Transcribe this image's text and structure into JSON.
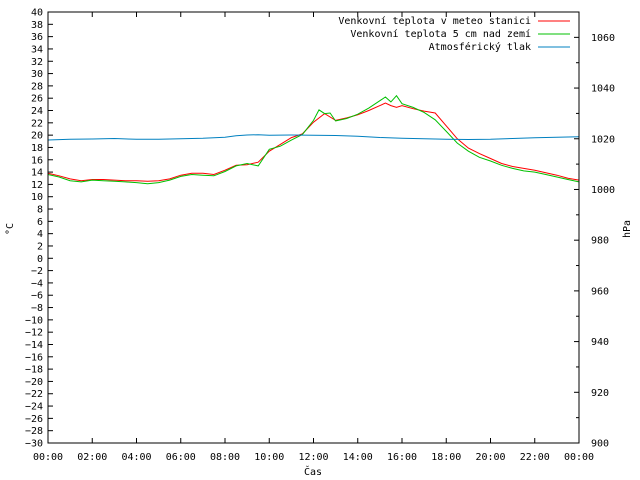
{
  "chart_data": {
    "type": "line",
    "xlabel": "Čas",
    "ylabel_left": "°C",
    "ylabel_right": "hPa",
    "x_ticks": [
      "00:00",
      "02:00",
      "04:00",
      "06:00",
      "08:00",
      "10:00",
      "12:00",
      "14:00",
      "16:00",
      "18:00",
      "20:00",
      "22:00",
      "00:00"
    ],
    "xlim": [
      0,
      24
    ],
    "ylim_left": [
      -30,
      40
    ],
    "y_ticks_left": [
      -30,
      -28,
      -26,
      -24,
      -22,
      -20,
      -18,
      -16,
      -14,
      -12,
      -10,
      -8,
      -6,
      -4,
      -2,
      0,
      2,
      4,
      6,
      8,
      10,
      12,
      14,
      16,
      18,
      20,
      22,
      24,
      26,
      28,
      30,
      32,
      34,
      36,
      38,
      40
    ],
    "ylim_right": [
      900,
      1070
    ],
    "y_ticks_right": [
      900,
      920,
      940,
      960,
      980,
      1000,
      1020,
      1040,
      1060
    ],
    "legend_position": "top-right",
    "series": [
      {
        "name": "Venkovní teplota v meteo stanici",
        "axis": "left",
        "color": "#ff0000",
        "x": [
          0,
          0.5,
          1,
          1.5,
          2,
          2.5,
          3,
          3.5,
          4,
          4.5,
          5,
          5.5,
          6,
          6.5,
          7,
          7.5,
          8,
          8.5,
          9,
          9.5,
          10,
          10.5,
          11,
          11.5,
          12,
          12.5,
          13,
          13.5,
          14,
          14.5,
          15,
          15.25,
          15.5,
          15.75,
          16,
          16.5,
          17,
          17.5,
          18,
          18.5,
          19,
          19.5,
          20,
          20.5,
          21,
          21.5,
          22,
          22.5,
          23,
          23.5,
          24
        ],
        "values": [
          13.8,
          13.4,
          12.9,
          12.6,
          12.8,
          12.8,
          12.7,
          12.6,
          12.6,
          12.5,
          12.6,
          12.9,
          13.5,
          13.8,
          13.8,
          13.6,
          14.3,
          15.1,
          15.2,
          15.6,
          17.4,
          18.5,
          19.6,
          20.2,
          22.1,
          23.5,
          22.4,
          22.8,
          23.3,
          24.0,
          24.8,
          25.2,
          24.8,
          24.5,
          24.8,
          24.3,
          23.9,
          23.6,
          21.5,
          19.4,
          17.9,
          17.0,
          16.2,
          15.4,
          14.9,
          14.6,
          14.3,
          13.9,
          13.5,
          13.0,
          12.7
        ]
      },
      {
        "name": "Venkovní teplota 5 cm nad zemí",
        "axis": "left",
        "color": "#00c000",
        "x": [
          0,
          0.5,
          1,
          1.5,
          2,
          2.5,
          3,
          3.5,
          4,
          4.5,
          5,
          5.5,
          6,
          6.5,
          7,
          7.5,
          8,
          8.5,
          9,
          9.5,
          10,
          10.5,
          11,
          11.5,
          12,
          12.25,
          12.5,
          12.75,
          13,
          13.5,
          14,
          14.5,
          15,
          15.25,
          15.5,
          15.75,
          16,
          16.5,
          17,
          17.5,
          18,
          18.5,
          19,
          19.5,
          20,
          20.5,
          21,
          21.5,
          22,
          22.5,
          23,
          23.5,
          24
        ],
        "values": [
          13.6,
          13.2,
          12.6,
          12.4,
          12.7,
          12.6,
          12.5,
          12.4,
          12.3,
          12.1,
          12.3,
          12.7,
          13.3,
          13.6,
          13.5,
          13.4,
          14.1,
          15.0,
          15.4,
          15.0,
          17.7,
          18.2,
          19.2,
          20.1,
          22.4,
          24.1,
          23.5,
          23.6,
          22.3,
          22.7,
          23.4,
          24.4,
          25.6,
          26.2,
          25.4,
          26.4,
          25.1,
          24.5,
          23.7,
          22.5,
          20.6,
          18.7,
          17.4,
          16.4,
          15.8,
          15.1,
          14.6,
          14.2,
          14.0,
          13.6,
          13.2,
          12.8,
          12.4
        ]
      },
      {
        "name": "Atmosférický tlak",
        "axis": "right",
        "color": "#0080c0",
        "x": [
          0,
          1,
          2,
          3,
          4,
          5,
          6,
          7,
          8,
          8.5,
          9,
          9.5,
          10,
          11,
          12,
          13,
          14,
          15,
          16,
          17,
          18,
          19,
          20,
          21,
          22,
          23,
          24
        ],
        "values": [
          1019.5,
          1019.8,
          1019.9,
          1020.1,
          1019.8,
          1019.8,
          1020.0,
          1020.2,
          1020.6,
          1021.2,
          1021.5,
          1021.6,
          1021.4,
          1021.5,
          1021.4,
          1021.3,
          1021.0,
          1020.5,
          1020.2,
          1020.0,
          1019.8,
          1019.7,
          1019.8,
          1020.1,
          1020.4,
          1020.6,
          1020.8
        ]
      }
    ]
  }
}
